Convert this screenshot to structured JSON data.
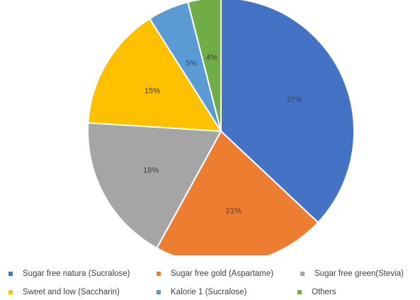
{
  "chart_data": {
    "type": "pie",
    "title": "",
    "legend_position": "bottom",
    "slices": [
      {
        "name": "Sugar free natura (Sucralose)",
        "value": 37,
        "label": "37%",
        "color": "#4472C4"
      },
      {
        "name": "Sugar free gold (Aspartame)",
        "value": 21,
        "label": "21%",
        "color": "#ED7D31"
      },
      {
        "name": "Sugar free green(Stevia)",
        "value": 18,
        "label": "18%",
        "color": "#A5A5A5"
      },
      {
        "name": "Sweet and low (Saccharin)",
        "value": 15,
        "label": "15%",
        "color": "#FFC000"
      },
      {
        "name": "Kalorie 1 (Sucralose)",
        "value": 5,
        "label": "5%",
        "color": "#5B9BD5"
      },
      {
        "name": "Others",
        "value": 4,
        "label": "4%",
        "color": "#70AD47"
      }
    ]
  }
}
